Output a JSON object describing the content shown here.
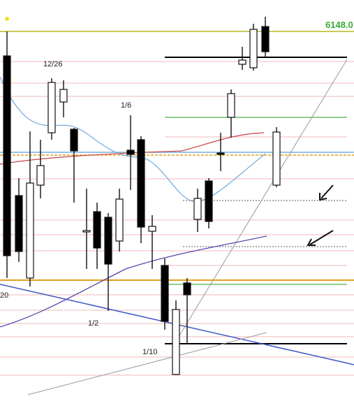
{
  "chart_data": {
    "type": "candlestick",
    "price_label": "6148.0",
    "date_labels": [
      "12/26",
      "1/6",
      "1/2",
      "1/10",
      "20"
    ],
    "colors": {
      "up_body": "#ffffff",
      "down_body": "#000000",
      "wick": "#111111",
      "grid_red": "#f1b8b8",
      "grid_green": "#4fae4f",
      "grid_yellow": "#c9c95a",
      "blue_line": "#3b57c6",
      "blue_ma": "#7aaede",
      "purple_ma": "#5b46b0",
      "red_ma": "#c94444",
      "orange_line": "#e0a020",
      "price_label": "#3aa83a",
      "gray_line": "#999999",
      "black_line": "#000000"
    }
  }
}
